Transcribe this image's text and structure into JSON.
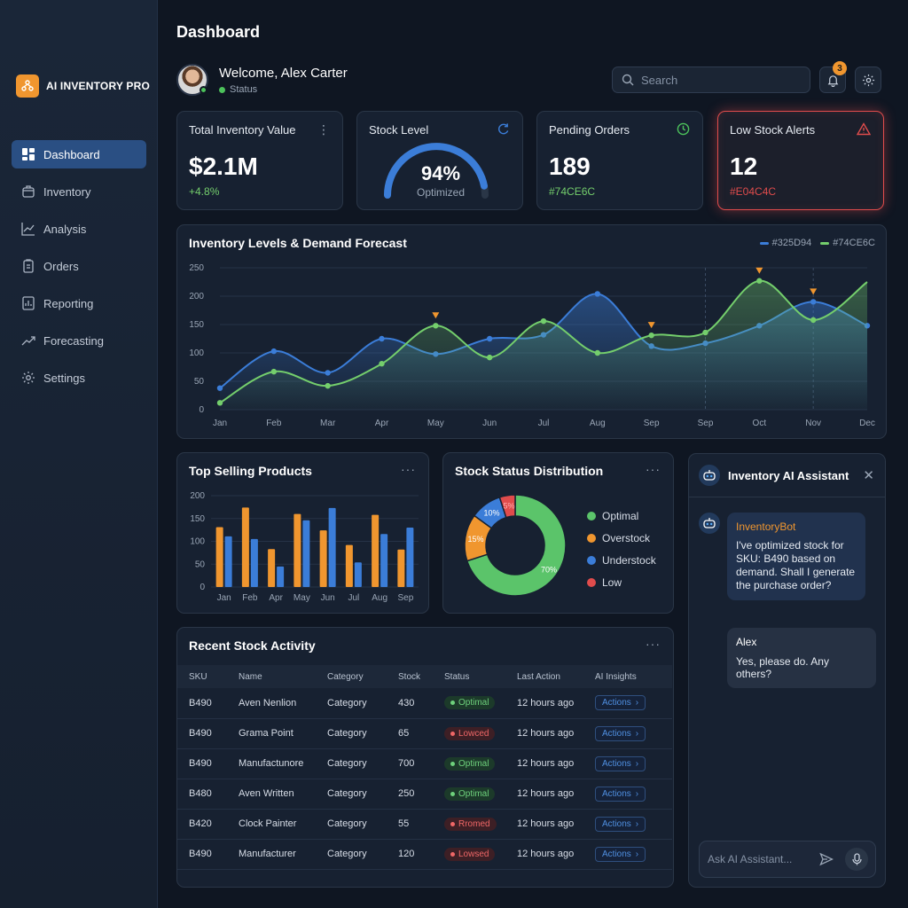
{
  "brand": {
    "name": "AI INVENTORY PRO"
  },
  "sidebar": {
    "items": [
      {
        "label": "Dashboard",
        "icon": "dashboard-icon",
        "active": true
      },
      {
        "label": "Inventory",
        "icon": "box-icon"
      },
      {
        "label": "Analysis",
        "icon": "analysis-icon"
      },
      {
        "label": "Orders",
        "icon": "orders-icon"
      },
      {
        "label": "Reporting",
        "icon": "report-icon"
      },
      {
        "label": "Forecasting",
        "icon": "forecast-icon"
      },
      {
        "label": "Settings",
        "icon": "gear-icon"
      }
    ]
  },
  "header": {
    "title": "Dashboard",
    "welcome": "Welcome, Alex Carter",
    "status": "Status",
    "search_placeholder": "Search",
    "notification_count": "3"
  },
  "kpis": {
    "total": {
      "label": "Total Inventory Value",
      "value": "$2.1M",
      "change": "+4.8%"
    },
    "stock": {
      "label": "Stock Level",
      "value": "94%",
      "caption": "Optimized",
      "percent": 94
    },
    "pending": {
      "label": "Pending Orders",
      "value": "189",
      "sub": "#74CE6C"
    },
    "low": {
      "label": "Low Stock Alerts",
      "value": "12",
      "sub": "#E04C4C"
    }
  },
  "colors": {
    "blue": "#325D94",
    "green": "#74CE6C",
    "red": "#E04C4C",
    "orange": "#F0962F",
    "accent": "#3B7DD8"
  },
  "forecast": {
    "title": "Inventory Levels & Demand Forecast",
    "legend": [
      "#325D94",
      "#74CE6C"
    ]
  },
  "top_selling": {
    "title": "Top Selling Products"
  },
  "distribution": {
    "title": "Stock Status Distribution",
    "legend": [
      "Optimal",
      "Overstock",
      "Understock",
      "Low"
    ],
    "labels": [
      "70%",
      "15%",
      "10%",
      "5%"
    ]
  },
  "activity": {
    "title": "Recent Stock Activity",
    "columns": [
      "SKU",
      "Name",
      "Category",
      "Stock",
      "Status",
      "Last Action",
      "AI Insights"
    ],
    "rows": [
      {
        "sku": "B490",
        "name": "Aven Nenlion",
        "category": "Category",
        "stock": "430",
        "status": "Optimal",
        "kind": "good",
        "last": "12 hours ago",
        "action": "Actions"
      },
      {
        "sku": "B490",
        "name": "Grama Point",
        "category": "Category",
        "stock": "65",
        "status": "Lowced",
        "kind": "bad",
        "last": "12 hours ago",
        "action": "Actions"
      },
      {
        "sku": "B490",
        "name": "Manufactunore",
        "category": "Category",
        "stock": "700",
        "status": "Optimal",
        "kind": "good",
        "last": "12 hours ago",
        "action": "Actions"
      },
      {
        "sku": "B480",
        "name": "Aven Written",
        "category": "Category",
        "stock": "250",
        "status": "Optimal",
        "kind": "good",
        "last": "12 hours ago",
        "action": "Actions"
      },
      {
        "sku": "B420",
        "name": "Clock Painter",
        "category": "Category",
        "stock": "55",
        "status": "Rromed",
        "kind": "bad",
        "last": "12 hours ago",
        "action": "Actions"
      },
      {
        "sku": "B490",
        "name": "Manufacturer",
        "category": "Category",
        "stock": "120",
        "status": "Lowsed",
        "kind": "bad",
        "last": "12 hours ago",
        "action": "Actions"
      }
    ]
  },
  "assistant": {
    "title": "Inventory AI Assistant",
    "bot_name": "InventoryBot",
    "bot_message": "I've optimized stock for SKU: B490 based on demand. Shall I generate the purchase order?",
    "user_name": "Alex",
    "user_message": "Yes, please do. Any others?",
    "input_placeholder": "Ask AI Assistant..."
  },
  "chart_data": [
    {
      "type": "area",
      "title": "Inventory Levels & Demand Forecast",
      "categories": [
        "Jan",
        "Feb",
        "Mar",
        "Apr",
        "May",
        "Jun",
        "Jul",
        "Aug",
        "Sep",
        "Sep",
        "Oct",
        "Nov",
        "Dec"
      ],
      "ylim": [
        0,
        250
      ],
      "yticks": [
        0,
        50,
        100,
        150,
        200,
        250
      ],
      "series": [
        {
          "name": "#325D94",
          "color": "#3B7DD8",
          "values": [
            38,
            103,
            65,
            125,
            98,
            125,
            132,
            204,
            112,
            117,
            148,
            190,
            148
          ]
        },
        {
          "name": "#74CE6C",
          "color": "#74CE6C",
          "values": [
            12,
            67,
            42,
            81,
            148,
            92,
            156,
            100,
            131,
            136,
            227,
            158,
            225
          ]
        }
      ],
      "markers_at": [
        4,
        8,
        10,
        11
      ],
      "forecast_from": 9
    },
    {
      "type": "bar",
      "title": "Top Selling Products",
      "categories": [
        "Jan",
        "Feb",
        "Apr",
        "May",
        "Jun",
        "Jul",
        "Aug",
        "Sep"
      ],
      "ylim": [
        0,
        200
      ],
      "yticks": [
        0,
        50,
        100,
        150,
        200
      ],
      "series": [
        {
          "color": "#F0962F",
          "values": [
            131,
            174,
            83,
            160,
            124,
            92,
            158,
            82
          ]
        },
        {
          "color": "#3B7DD8",
          "values": [
            111,
            105,
            45,
            146,
            173,
            54,
            116,
            130
          ]
        }
      ]
    },
    {
      "type": "pie",
      "title": "Stock Status Distribution",
      "labels": [
        "Optimal",
        "Overstock",
        "Understock",
        "Low"
      ],
      "values": [
        70,
        15,
        10,
        5
      ],
      "colors": [
        "#5BC46A",
        "#F0962F",
        "#3B7DD8",
        "#E04C4C"
      ]
    }
  ]
}
